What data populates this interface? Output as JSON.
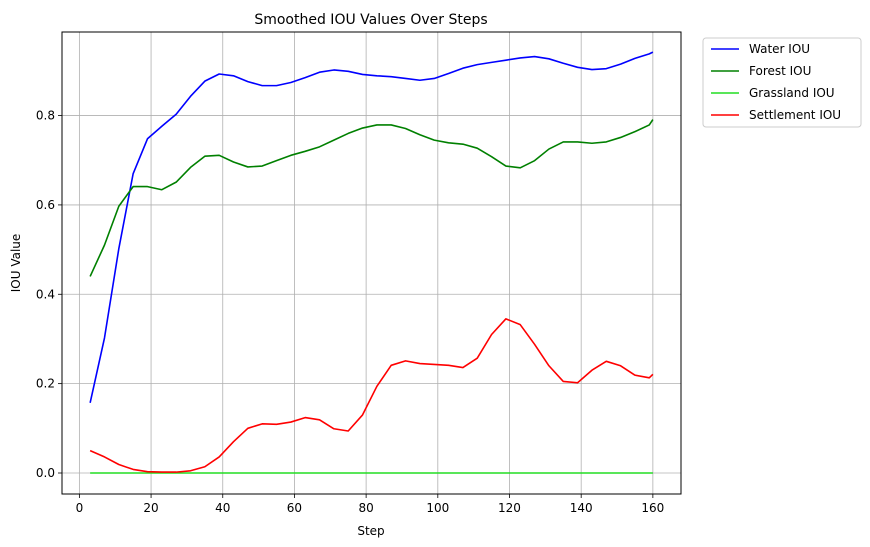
{
  "chart_data": {
    "type": "line",
    "title": "Smoothed IOU Values Over Steps",
    "xlabel": "Step",
    "ylabel": "IOU Value",
    "xlim": [
      -4.85,
      167.85
    ],
    "ylim": [
      -0.047,
      0.987
    ],
    "xticks": [
      0,
      20,
      40,
      60,
      80,
      100,
      120,
      140,
      160
    ],
    "yticks": [
      0.0,
      0.2,
      0.4,
      0.6,
      0.8
    ],
    "ytick_labels": [
      "0.0",
      "0.2",
      "0.4",
      "0.6",
      "0.8"
    ],
    "grid": true,
    "legend_position": "outside-top-right",
    "x": [
      3,
      7,
      11,
      15,
      19,
      23,
      27,
      31,
      35,
      39,
      43,
      47,
      51,
      55,
      59,
      63,
      67,
      71,
      75,
      79,
      83,
      87,
      91,
      95,
      99,
      103,
      107,
      111,
      115,
      119,
      123,
      127,
      131,
      135,
      139,
      143,
      147,
      151,
      155,
      159,
      160
    ],
    "series": [
      {
        "name": "Water IOU",
        "color": "#0000ff",
        "values": [
          0.157,
          0.302,
          0.502,
          0.67,
          0.748,
          0.776,
          0.803,
          0.843,
          0.877,
          0.893,
          0.889,
          0.876,
          0.867,
          0.867,
          0.874,
          0.885,
          0.897,
          0.902,
          0.899,
          0.892,
          0.889,
          0.887,
          0.883,
          0.879,
          0.883,
          0.894,
          0.906,
          0.914,
          0.919,
          0.924,
          0.929,
          0.932,
          0.927,
          0.917,
          0.908,
          0.903,
          0.905,
          0.915,
          0.928,
          0.938,
          0.942
        ]
      },
      {
        "name": "Forest IOU",
        "color": "#008000",
        "values": [
          0.44,
          0.51,
          0.597,
          0.641,
          0.641,
          0.634,
          0.651,
          0.684,
          0.709,
          0.711,
          0.696,
          0.685,
          0.687,
          0.699,
          0.711,
          0.72,
          0.73,
          0.745,
          0.76,
          0.772,
          0.779,
          0.779,
          0.771,
          0.757,
          0.745,
          0.739,
          0.736,
          0.727,
          0.708,
          0.687,
          0.683,
          0.699,
          0.725,
          0.741,
          0.741,
          0.738,
          0.741,
          0.751,
          0.764,
          0.779,
          0.791
        ]
      },
      {
        "name": "Grassland IOU",
        "color": "#22dd22",
        "values": [
          0,
          0,
          0,
          0,
          0,
          0,
          0,
          0,
          0,
          0,
          0,
          0,
          0,
          0,
          0,
          0,
          0,
          0,
          0,
          0,
          0,
          0,
          0,
          0,
          0,
          0,
          0,
          0,
          0,
          0,
          0,
          0,
          0,
          0,
          0,
          0,
          0,
          0,
          0,
          0,
          0
        ]
      },
      {
        "name": "Settlement IOU",
        "color": "#ff0000",
        "values": [
          0.05,
          0.036,
          0.019,
          0.008,
          0.003,
          0.002,
          0.002,
          0.005,
          0.014,
          0.036,
          0.07,
          0.1,
          0.11,
          0.109,
          0.114,
          0.124,
          0.119,
          0.099,
          0.094,
          0.13,
          0.194,
          0.241,
          0.251,
          0.245,
          0.243,
          0.241,
          0.236,
          0.257,
          0.31,
          0.345,
          0.332,
          0.288,
          0.24,
          0.205,
          0.202,
          0.23,
          0.25,
          0.24,
          0.219,
          0.213,
          0.221
        ]
      }
    ]
  }
}
